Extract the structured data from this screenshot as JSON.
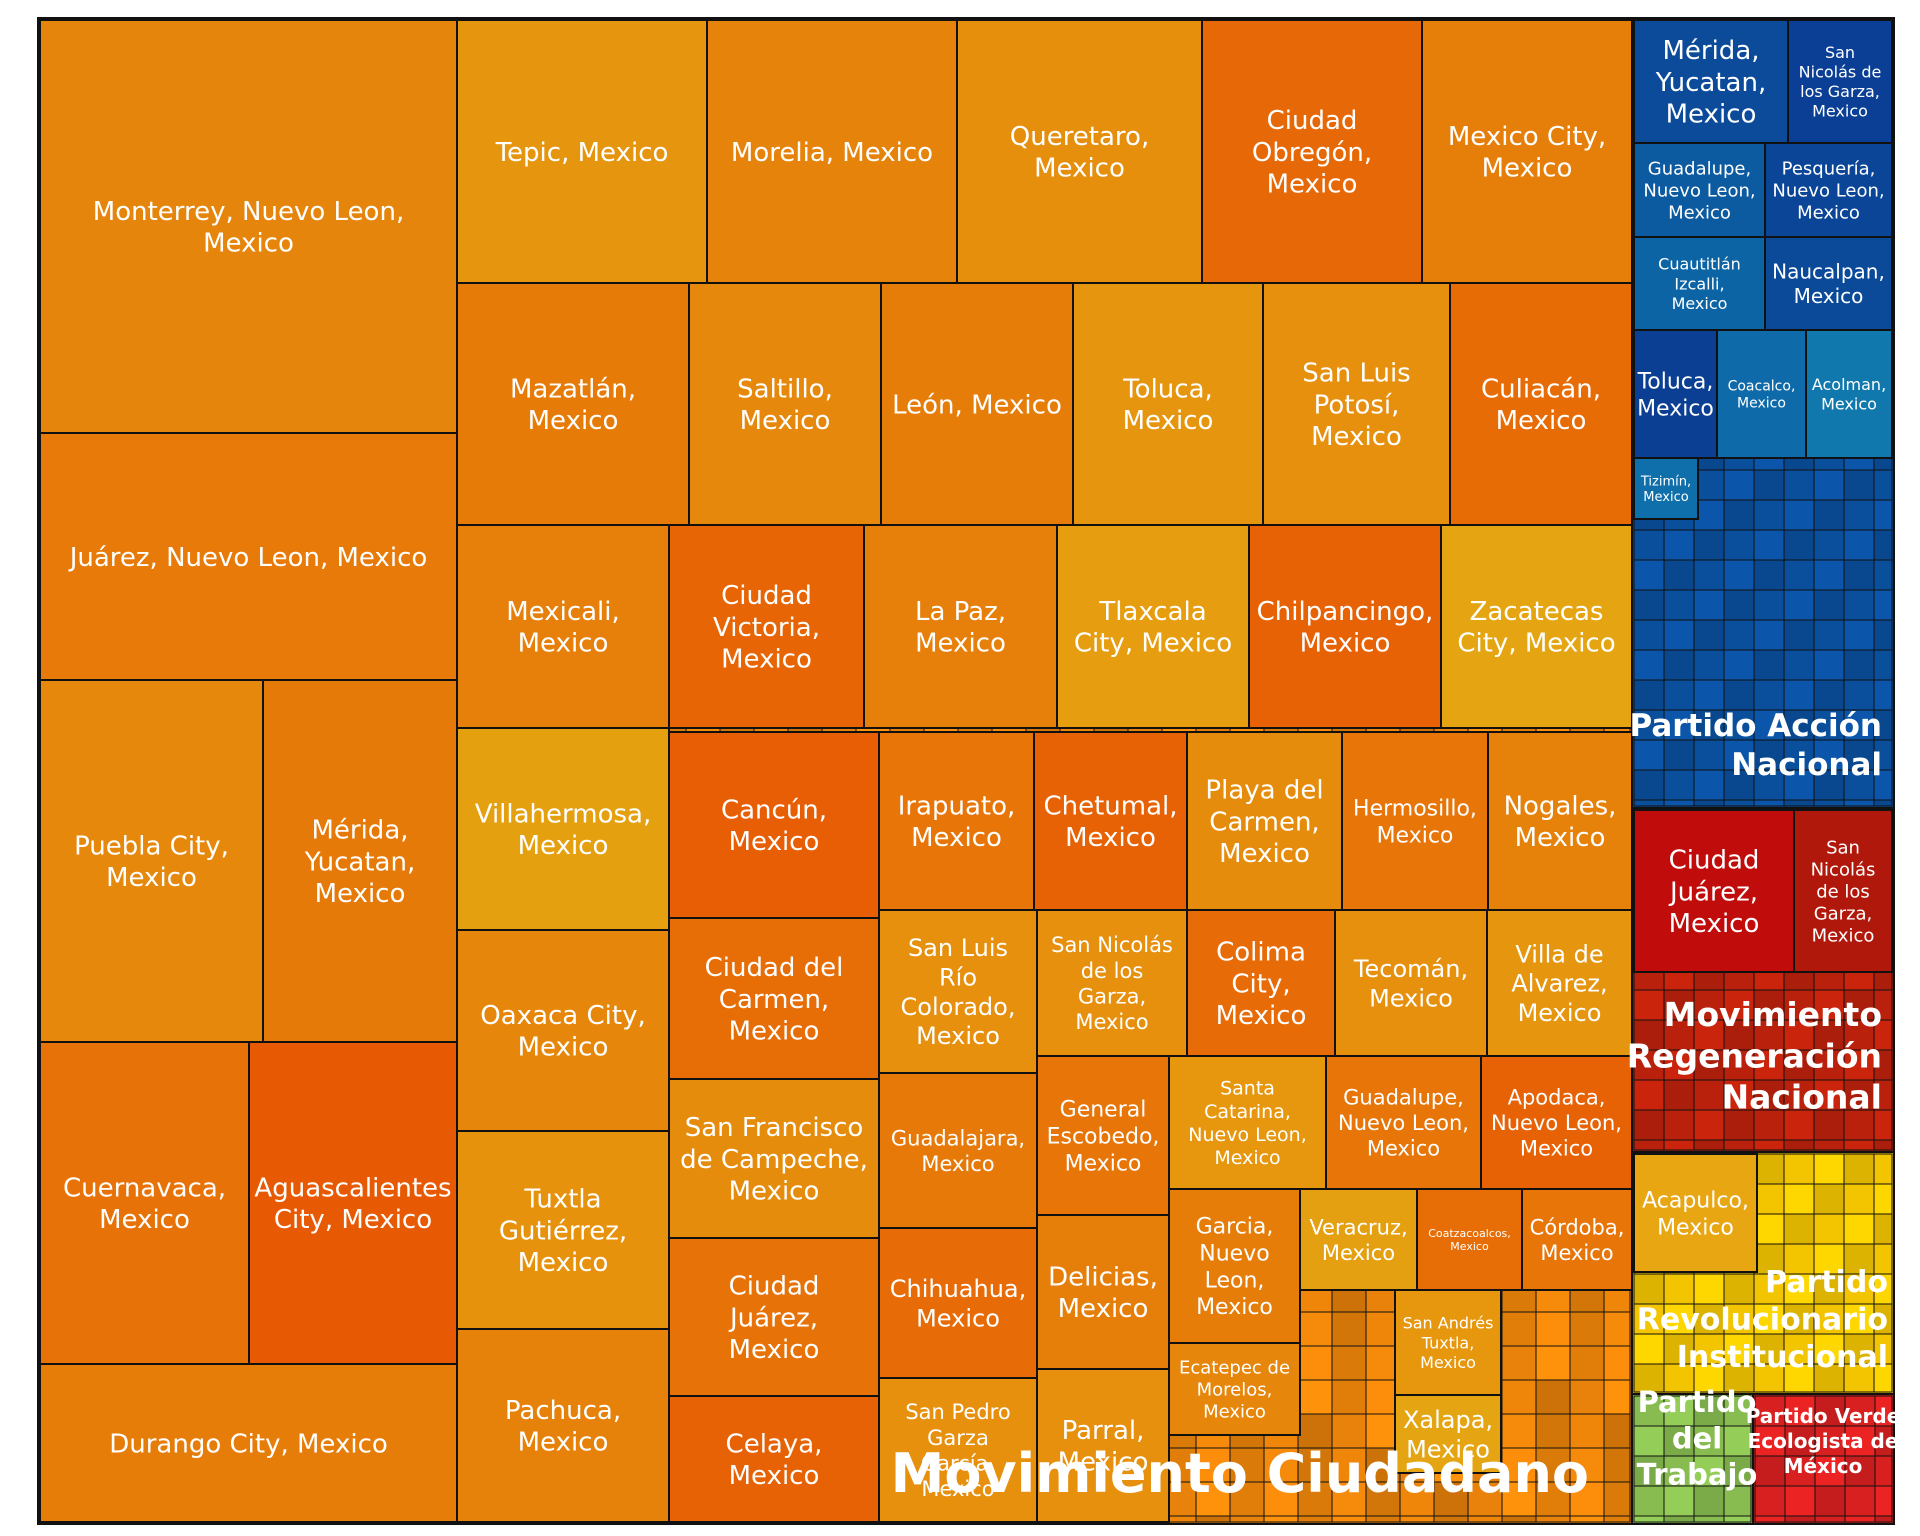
{
  "chart_data": {
    "type": "treemap",
    "title": "",
    "groups": [
      {
        "name": "Movimiento Ciudadano",
        "color": "#e8820a",
        "cells": [
          {
            "label": "Monterrey, Nuevo Leon, Mexico",
            "color": "#e6850b"
          },
          {
            "label": "Juárez, Nuevo Leon, Mexico",
            "color": "#e77a08"
          },
          {
            "label": "Puebla City, Mexico",
            "color": "#e6880c"
          },
          {
            "label": "Mérida, Yucatan, Mexico",
            "color": "#e67a08"
          },
          {
            "label": "Cuernavaca, Mexico",
            "color": "#e77207"
          },
          {
            "label": "Aguascalientes City, Mexico",
            "color": "#e75a03"
          },
          {
            "label": "Durango City, Mexico",
            "color": "#e67d09"
          },
          {
            "label": "Tepic, Mexico",
            "color": "#e6950e"
          },
          {
            "label": "Morelia, Mexico",
            "color": "#e6830b"
          },
          {
            "label": "Queretaro, Mexico",
            "color": "#e58f0d"
          },
          {
            "label": "Ciudad Obregón, Mexico",
            "color": "#e76806"
          },
          {
            "label": "Mexico City, Mexico",
            "color": "#e67f0a"
          },
          {
            "label": "Mazatlán, Mexico",
            "color": "#e77b08"
          },
          {
            "label": "Saltillo, Mexico",
            "color": "#e6880b"
          },
          {
            "label": "León, Mexico",
            "color": "#e67d09"
          },
          {
            "label": "Toluca, Mexico",
            "color": "#e6960e"
          },
          {
            "label": "San Luis Potosí, Mexico",
            "color": "#e6900d"
          },
          {
            "label": "Culiacán, Mexico",
            "color": "#e76c06"
          },
          {
            "label": "Mexicali, Mexico",
            "color": "#e6800a"
          },
          {
            "label": "Ciudad Victoria, Mexico",
            "color": "#e76505"
          },
          {
            "label": "La Paz, Mexico",
            "color": "#e6800a"
          },
          {
            "label": "Tlaxcala City, Mexico",
            "color": "#e69d10"
          },
          {
            "label": "Chilpancingo, Mexico",
            "color": "#e76205"
          },
          {
            "label": "Zacatecas City, Mexico",
            "color": "#e5a512"
          },
          {
            "label": "Villahermosa, Mexico",
            "color": "#e5a010"
          },
          {
            "label": "Oaxaca City, Mexico",
            "color": "#e6870b"
          },
          {
            "label": "Tuxtla Gutiérrez, Mexico",
            "color": "#e6920d"
          },
          {
            "label": "Pachuca, Mexico",
            "color": "#e6820a"
          },
          {
            "label": "Cancún, Mexico",
            "color": "#e75e04"
          },
          {
            "label": "Ciudad del Carmen, Mexico",
            "color": "#e76d06"
          },
          {
            "label": "San Francisco de Campeche, Mexico",
            "color": "#e68c0c"
          },
          {
            "label": "Ciudad Juárez, Mexico",
            "color": "#e77308"
          },
          {
            "label": "Celaya, Mexico",
            "color": "#e76204"
          },
          {
            "label": "Irapuato, Mexico",
            "color": "#e77508"
          },
          {
            "label": "Chetumal, Mexico",
            "color": "#e76204"
          },
          {
            "label": "Playa del Carmen, Mexico",
            "color": "#e68c0c"
          },
          {
            "label": "Hermosillo, Mexico",
            "color": "#e77508"
          },
          {
            "label": "Nogales, Mexico",
            "color": "#e6820a"
          },
          {
            "label": "San Luis Río Colorado, Mexico",
            "color": "#e6900d"
          },
          {
            "label": "San Nicolás de los Garza, Mexico",
            "color": "#e6900d"
          },
          {
            "label": "Colima City, Mexico",
            "color": "#e76b06"
          },
          {
            "label": "Tecomán, Mexico",
            "color": "#e6900d"
          },
          {
            "label": "Villa de Alvarez, Mexico",
            "color": "#e6950e"
          },
          {
            "label": "Guadalajara, Mexico",
            "color": "#e77908"
          },
          {
            "label": "General Escobedo, Mexico",
            "color": "#e77508"
          },
          {
            "label": "Santa Catarina, Nuevo Leon, Mexico",
            "color": "#e6970e"
          },
          {
            "label": "Guadalupe, Nuevo Leon, Mexico",
            "color": "#e77508"
          },
          {
            "label": "Apodaca, Nuevo Leon, Mexico",
            "color": "#e76204"
          },
          {
            "label": "Chihuahua, Mexico",
            "color": "#e76b06"
          },
          {
            "label": "Delicias, Mexico",
            "color": "#e67f0a"
          },
          {
            "label": "Garcia, Nuevo Leon, Mexico",
            "color": "#e67d09"
          },
          {
            "label": "Veracruz, Mexico",
            "color": "#e5a011"
          },
          {
            "label": "Coatzacoalcos, Mexico",
            "color": "#e76d06"
          },
          {
            "label": "Córdoba, Mexico",
            "color": "#e77508"
          },
          {
            "label": "Ecatepec de Morelos, Mexico",
            "color": "#e6870b"
          },
          {
            "label": "San Andrés Tuxtla, Mexico",
            "color": "#e6970e"
          },
          {
            "label": "San Pedro Garza García, Mexico",
            "color": "#e6900d"
          },
          {
            "label": "Parral, Mexico",
            "color": "#e6900d"
          },
          {
            "label": "Xalapa, Mexico",
            "color": "#e5a512"
          }
        ]
      },
      {
        "name": "Partido Acción Nacional",
        "color": "#0a4f9c",
        "cells": [
          {
            "label": "Mérida, Yucatan, Mexico",
            "color": "#0c4b9a"
          },
          {
            "label": "San Nicolás de los Garza, Mexico",
            "color": "#0a3f95"
          },
          {
            "label": "Guadalupe, Nuevo Leon, Mexico",
            "color": "#0c5aa0"
          },
          {
            "label": "Pesquería, Nuevo Leon, Mexico",
            "color": "#0b4597"
          },
          {
            "label": "Cuautitlán Izcalli, Mexico",
            "color": "#0d64a5"
          },
          {
            "label": "Naucalpan, Mexico",
            "color": "#0b4a99"
          },
          {
            "label": "Toluca, Mexico",
            "color": "#0a3f94"
          },
          {
            "label": "Coacalco, Mexico",
            "color": "#0e6aa8"
          },
          {
            "label": "Acolman, Mexico",
            "color": "#1078ad"
          },
          {
            "label": "Tizimín, Mexico",
            "color": "#0e6fab"
          }
        ]
      },
      {
        "name": "Movimiento Regeneración Nacional",
        "color": "#b5200c",
        "cells": [
          {
            "label": "Ciudad Juárez, Mexico",
            "color": "#c00d0b"
          },
          {
            "label": "San Nicolás de los Garza, Mexico",
            "color": "#b0180c"
          }
        ]
      },
      {
        "name": "Partido Revolucionario Institucional",
        "color": "#f2c500",
        "cells": [
          {
            "label": "Acapulco, Mexico",
            "color": "#e8a612"
          }
        ]
      },
      {
        "name": "Partido del Trabajo",
        "color": "#8cc152",
        "cells": []
      },
      {
        "name": "Partido Verde Ecologista de México",
        "color": "#d82020",
        "cells": []
      }
    ]
  }
}
